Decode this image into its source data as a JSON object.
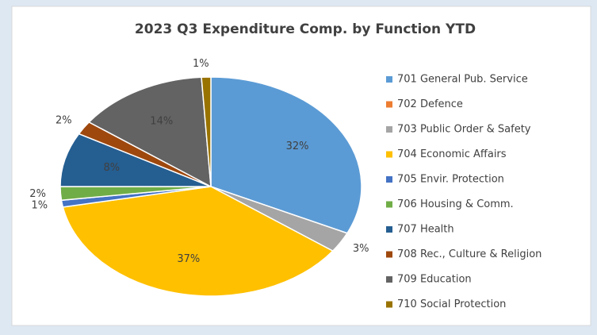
{
  "chart_data": {
    "type": "pie",
    "title": "2023 Q3 Expenditure Comp. by Function YTD",
    "categories": [
      "701 General Pub. Service",
      "702 Defence",
      "703 Public Order & Safety",
      "704 Economic Affairs",
      "705 Envir. Protection",
      "706 Housing & Comm.",
      "707 Health",
      "708 Rec., Culture & Religion",
      "709 Education",
      "710 Social Protection"
    ],
    "values": [
      32,
      0,
      3,
      37,
      1,
      2,
      8,
      2,
      14,
      1
    ],
    "value_labels": [
      "32%",
      null,
      "3%",
      "37%",
      "1%",
      "2%",
      "8%",
      "2%",
      "14%",
      "1%"
    ],
    "colors": [
      "#5b9bd5",
      "#ed7d31",
      "#a5a5a5",
      "#ffc000",
      "#4472c4",
      "#70ad47",
      "#255e91",
      "#9e480e",
      "#636363",
      "#997300"
    ],
    "legend": "right"
  }
}
